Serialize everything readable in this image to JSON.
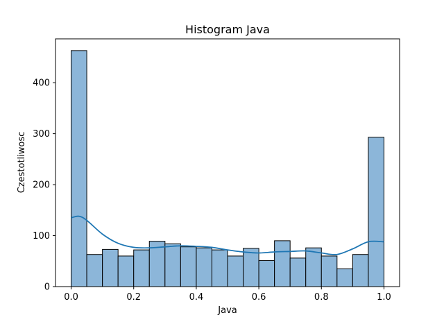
{
  "chart_data": {
    "type": "bar",
    "title": "Histogram Java",
    "xlabel": "Java",
    "ylabel": "Czestotliwosc",
    "xlim": [
      -0.05,
      1.05
    ],
    "ylim": [
      0,
      486
    ],
    "x_ticks": [
      "0.0",
      "0.2",
      "0.4",
      "0.6",
      "0.8",
      "1.0"
    ],
    "x_tick_values": [
      0.0,
      0.2,
      0.4,
      0.6,
      0.8,
      1.0
    ],
    "y_ticks": [
      "0",
      "100",
      "200",
      "300",
      "400"
    ],
    "y_tick_values": [
      0,
      100,
      200,
      300,
      400
    ],
    "bin_start": 0.0,
    "bin_width": 0.05,
    "values": [
      463,
      63,
      73,
      60,
      72,
      89,
      84,
      78,
      76,
      72,
      60,
      75,
      51,
      90,
      56,
      76,
      60,
      35,
      63,
      293
    ],
    "kde": {
      "x": [
        0.0,
        0.025,
        0.05,
        0.1,
        0.15,
        0.2,
        0.25,
        0.3,
        0.35,
        0.4,
        0.45,
        0.5,
        0.55,
        0.6,
        0.65,
        0.7,
        0.75,
        0.8,
        0.85,
        0.9,
        0.95,
        1.0
      ],
      "y": [
        135,
        138,
        130,
        103,
        85,
        77,
        76,
        78,
        80,
        79,
        77,
        72,
        68,
        66,
        68,
        69,
        70,
        66,
        63,
        74,
        88,
        88
      ]
    },
    "grid": false,
    "colors": {
      "bar_fill": "#8cb6d9",
      "bar_edge": "#000000",
      "kde_line": "#1f77b4"
    }
  }
}
